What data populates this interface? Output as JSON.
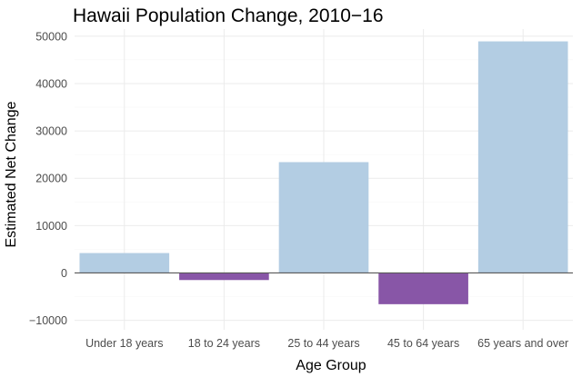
{
  "chart_data": {
    "type": "bar",
    "title": "Hawaii Population Change, 2010−16",
    "xlabel": "Age Group",
    "ylabel": "Estimated Net Change",
    "categories": [
      "Under 18 years",
      "18 to 24 years",
      "25 to 44 years",
      "45 to 64 years",
      "65 years and over"
    ],
    "values": [
      4200,
      -1500,
      23400,
      -6600,
      48900
    ],
    "ylim": [
      -12000,
      51500
    ],
    "yticks": [
      -10000,
      0,
      10000,
      20000,
      30000,
      40000,
      50000
    ],
    "ytick_labels": [
      "−10000",
      "0",
      "10000",
      "20000",
      "30000",
      "40000",
      "50000"
    ],
    "grid": true,
    "legend": "none",
    "colors": {
      "positive": "#b3cde3",
      "negative": "#8856a7",
      "zero_line": "#595959",
      "grid_major": "#ebebeb",
      "grid_minor": "#f5f5f5"
    }
  }
}
